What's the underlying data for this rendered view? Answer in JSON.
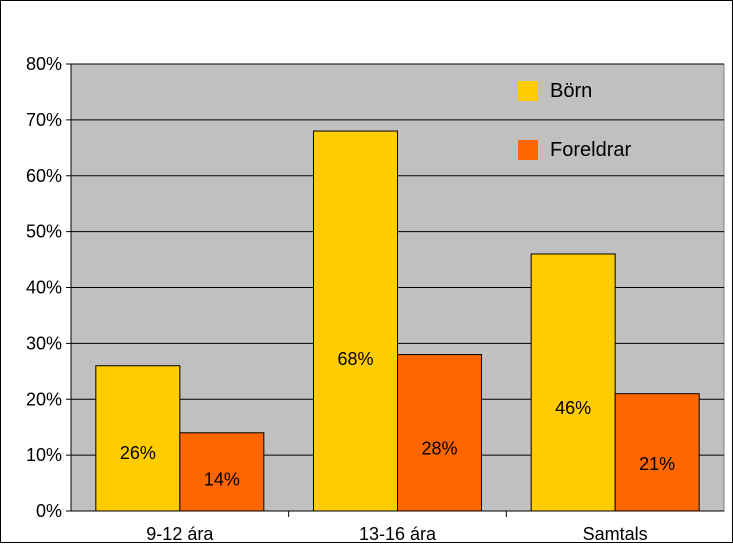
{
  "chart_data": {
    "type": "bar",
    "title": "",
    "xlabel": "",
    "ylabel": "",
    "categories": [
      "9-12 ára",
      "13-16 ára",
      "Samtals"
    ],
    "series": [
      {
        "name": "Börn",
        "values": [
          26,
          68,
          46
        ],
        "labels": [
          "26%",
          "68%",
          "46%"
        ],
        "color": "#FFCC00"
      },
      {
        "name": "Foreldrar",
        "values": [
          14,
          28,
          21
        ],
        "labels": [
          "14%",
          "28%",
          "21%"
        ],
        "color": "#FF6600"
      }
    ],
    "ylim": [
      0,
      80
    ],
    "yticks": [
      "0%",
      "10%",
      "20%",
      "30%",
      "40%",
      "50%",
      "60%",
      "70%",
      "80%"
    ],
    "grid": true,
    "legend": "top-right",
    "plot_background": "#C0C0C0"
  }
}
